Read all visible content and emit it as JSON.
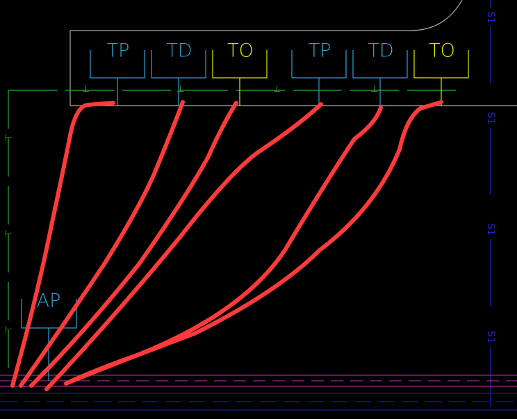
{
  "outlets": [
    {
      "label": "TP"
    },
    {
      "label": "TD"
    },
    {
      "label": "TO"
    },
    {
      "label": "TP"
    },
    {
      "label": "TD"
    },
    {
      "label": "TO"
    }
  ],
  "access_point": {
    "label": "AP"
  },
  "axis_labels": [
    "S1",
    "S1",
    "S1",
    "S1"
  ]
}
